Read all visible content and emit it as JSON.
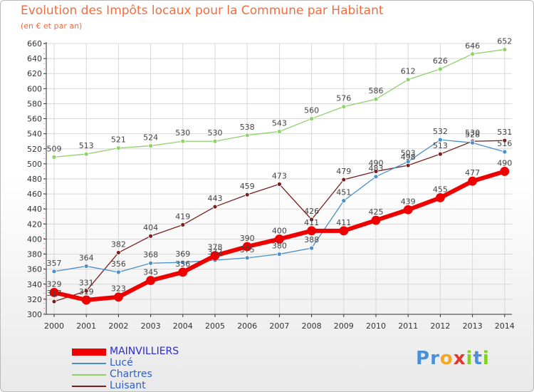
{
  "header": {
    "title": "Evolution des Impôts locaux pour la Commune par Habitant",
    "subtitle": "(en € et par an)"
  },
  "logo": {
    "letters": [
      "P",
      "r",
      "o",
      "x",
      "i",
      "t",
      "i"
    ],
    "colors": [
      "#4a90d9",
      "#4a90d9",
      "#f5a623",
      "#e2382b",
      "#7ed321",
      "#4a90d9",
      "#7ed321"
    ]
  },
  "chart_data": {
    "type": "line",
    "x": [
      "2000",
      "2001",
      "2002",
      "2003",
      "2004",
      "2005",
      "2006",
      "2007",
      "2008",
      "2009",
      "2010",
      "2011",
      "2012",
      "2013",
      "2014"
    ],
    "ylim": [
      300,
      660
    ],
    "yticks": [
      300,
      320,
      340,
      360,
      380,
      400,
      420,
      440,
      460,
      480,
      500,
      520,
      540,
      560,
      580,
      600,
      620,
      640,
      660
    ],
    "grid": true,
    "legend_position": "bottom-left",
    "series": [
      {
        "name": "Chartres",
        "color": "#8fd16a",
        "values": [
          509,
          513,
          521,
          524,
          530,
          530,
          538,
          543,
          560,
          576,
          586,
          612,
          626,
          646,
          652
        ]
      },
      {
        "name": "Luisant",
        "color": "#7a1f1f",
        "values": [
          317,
          331,
          382,
          404,
          419,
          443,
          459,
          473,
          426,
          479,
          490,
          498,
          513,
          530,
          531
        ]
      },
      {
        "name": "Lucé",
        "color": "#4a90c8",
        "values": [
          357,
          364,
          356,
          368,
          369,
          372,
          375,
          380,
          388,
          451,
          483,
          503,
          532,
          528,
          516
        ]
      },
      {
        "name": "MAINVILLIERS",
        "color": "#ee0000",
        "values": [
          329,
          319,
          323,
          345,
          356,
          378,
          390,
          400,
          411,
          411,
          425,
          439,
          455,
          477,
          490
        ]
      }
    ],
    "legend_order": [
      "MAINVILLIERS",
      "Lucé",
      "Chartres",
      "Luisant"
    ]
  }
}
